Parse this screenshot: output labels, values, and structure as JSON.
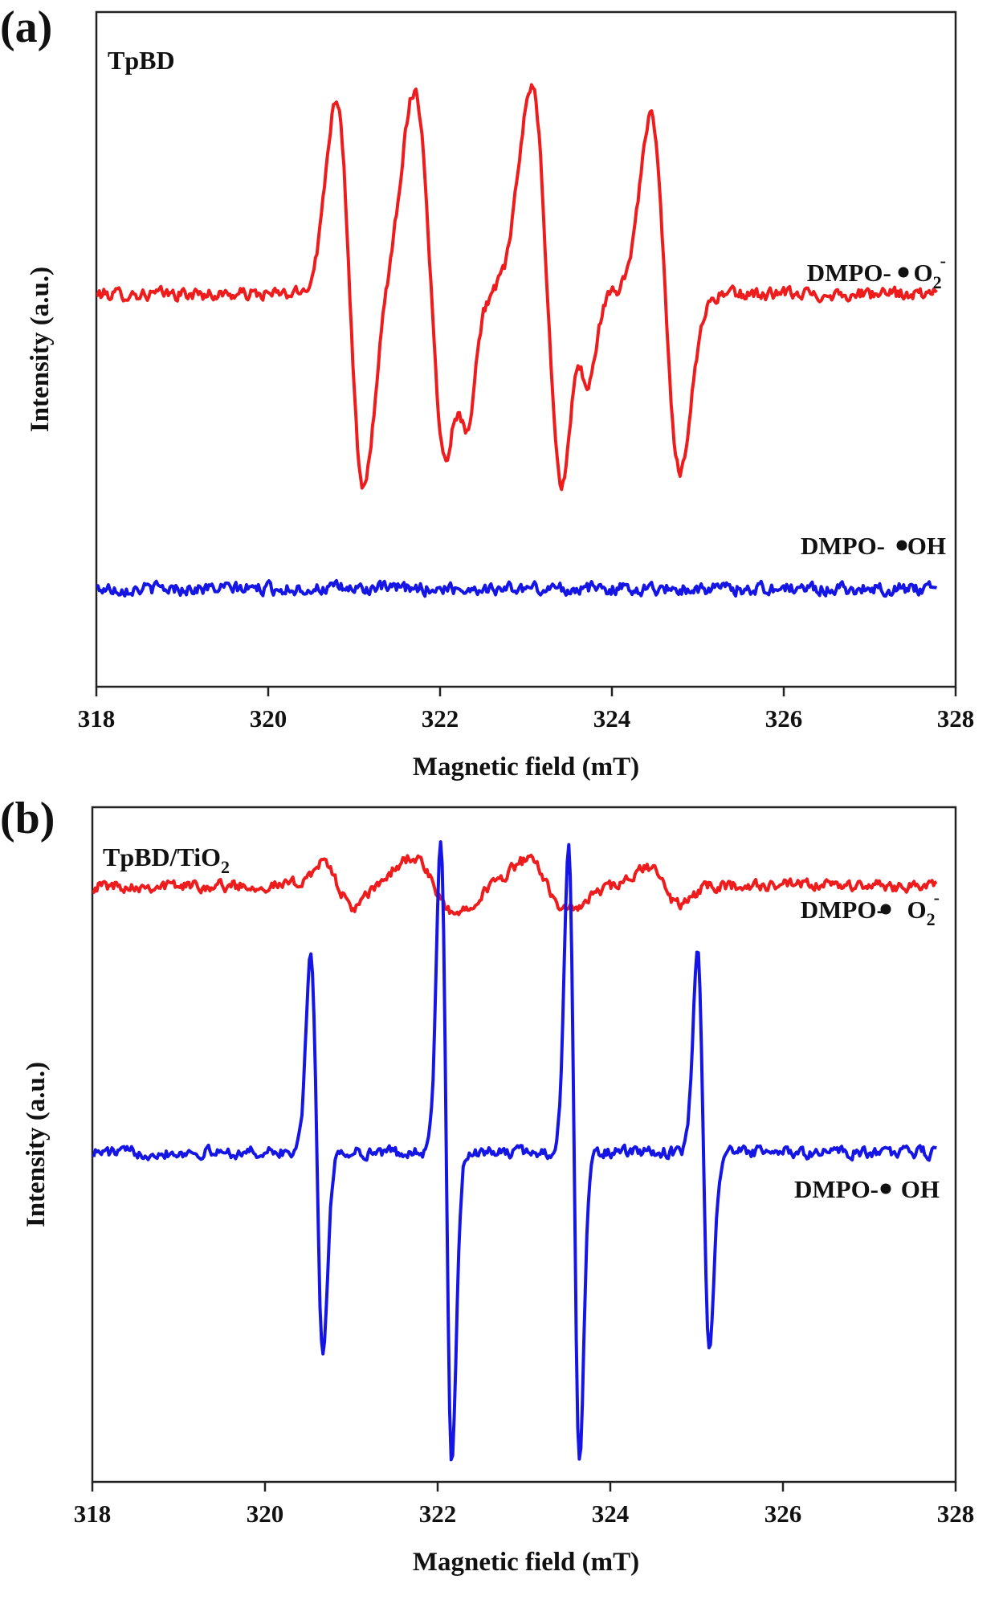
{
  "colors": {
    "o2": "#ee1c1c",
    "oh": "#1515e6",
    "axis": "#222222"
  },
  "chart_data": [
    {
      "type": "line",
      "panel_label": "(a)",
      "sample_label": "TpBD",
      "xlabel": "Magnetic field (mT)",
      "ylabel": "Intensity (a.u.)",
      "xlim": [
        318,
        328
      ],
      "ylim": [
        -1.6,
        1.15
      ],
      "xticks": [
        "318",
        "320",
        "322",
        "324",
        "326",
        "328"
      ],
      "legend_position": "right",
      "series": [
        {
          "key": "o2",
          "label_prefix": "DMPO- ",
          "label_radical": "O",
          "label_sub": "2",
          "label_sup": "-",
          "baseline": 0,
          "noise": 0.025,
          "peaks": [
            {
              "x": 320.95,
              "a": 0.8,
              "w": 0.16
            },
            {
              "x": 321.9,
              "a": 0.83,
              "w": 0.2
            },
            {
              "x": 322.25,
              "a": 0.25,
              "w": 0.1
            },
            {
              "x": 323.25,
              "a": 0.85,
              "w": 0.19
            },
            {
              "x": 323.65,
              "a": 0.24,
              "w": 0.1
            },
            {
              "x": 324.62,
              "a": 0.72,
              "w": 0.17
            }
          ]
        },
        {
          "key": "oh",
          "label_prefix": "DMPO- ",
          "label_radical": "OH",
          "label_sub": "",
          "label_sup": "",
          "baseline": -1.2,
          "noise": 0.025,
          "peaks": []
        }
      ]
    },
    {
      "type": "line",
      "panel_label": "(b)",
      "sample_label": "TpBD/TiO",
      "sample_label_sub": "2",
      "xlabel": "Magnetic field (mT)",
      "ylabel": "Intensity (a.u.)",
      "xlim": [
        318,
        328
      ],
      "ylim": [
        -1.05,
        1.1
      ],
      "xticks": [
        "318",
        "320",
        "322",
        "324",
        "326",
        "328"
      ],
      "legend_position": "right",
      "series": [
        {
          "key": "o2",
          "label_prefix": "DMPO- ",
          "label_radical": "O",
          "label_sub": "2",
          "label_sup": "-",
          "baseline": 0.85,
          "noise": 0.018,
          "peaks": [
            {
              "x": 320.85,
              "a": 0.07,
              "w": 0.18
            },
            {
              "x": 321.95,
              "a": 0.09,
              "w": 0.25
            },
            {
              "x": 323.28,
              "a": 0.08,
              "w": 0.25
            },
            {
              "x": 324.62,
              "a": 0.06,
              "w": 0.18
            }
          ]
        },
        {
          "key": "oh",
          "label_prefix": "DMPO- ",
          "label_radical": "OH",
          "label_sub": "",
          "label_sup": "",
          "baseline": 0,
          "noise": 0.018,
          "peaks": [
            {
              "x": 320.6,
              "a": 0.64,
              "w": 0.07
            },
            {
              "x": 322.1,
              "a": 1.0,
              "w": 0.065
            },
            {
              "x": 323.58,
              "a": 0.98,
              "w": 0.065
            },
            {
              "x": 325.08,
              "a": 0.63,
              "w": 0.07
            }
          ]
        }
      ]
    }
  ]
}
